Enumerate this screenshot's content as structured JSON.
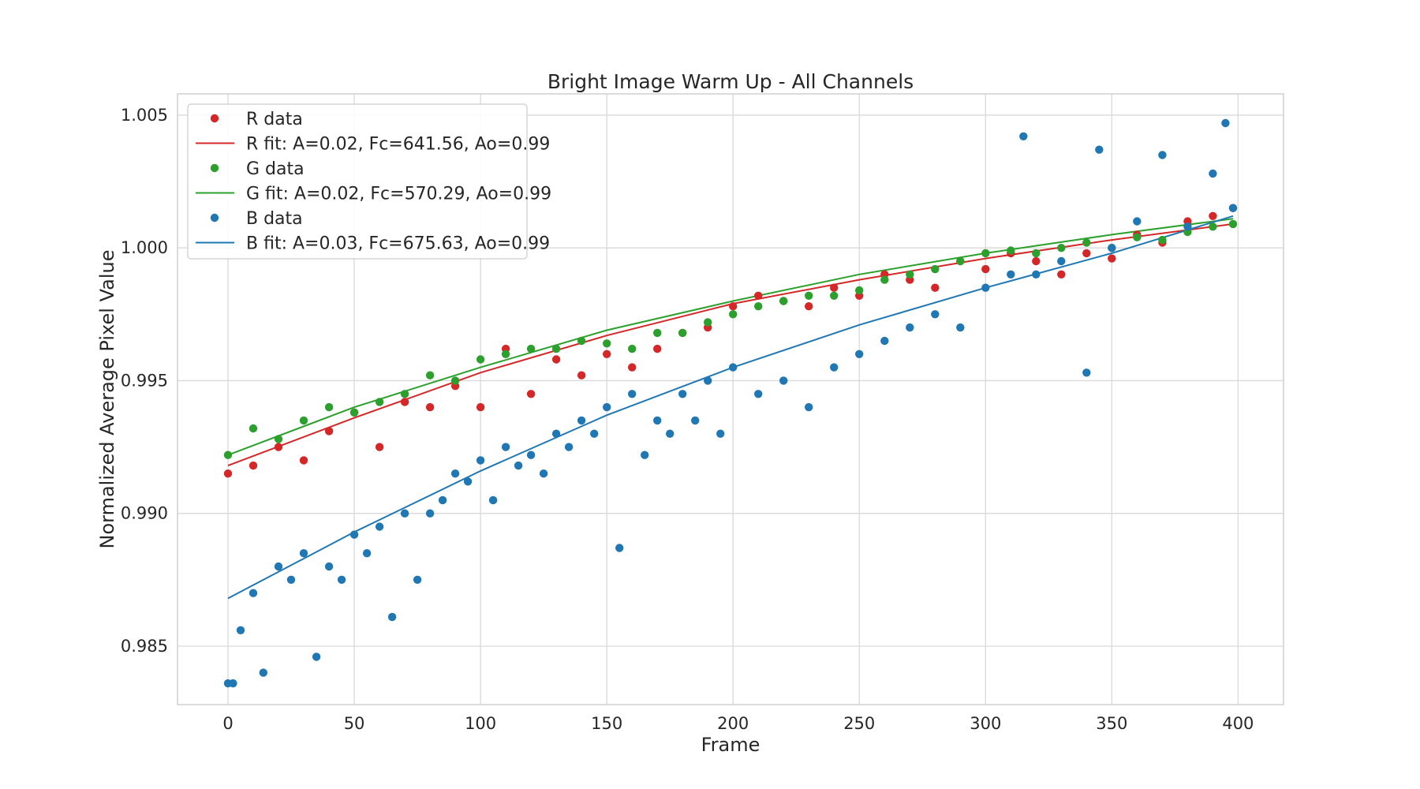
{
  "chart_data": {
    "type": "scatter",
    "title": "Bright Image Warm Up - All Channels",
    "xlabel": "Frame",
    "ylabel": "Normalized Average Pixel Value",
    "xlim": [
      -20,
      418
    ],
    "ylim": [
      0.9828,
      1.0058
    ],
    "xticks": [
      0,
      50,
      100,
      150,
      200,
      250,
      300,
      350,
      400
    ],
    "xtick_labels": [
      "0",
      "50",
      "100",
      "150",
      "200",
      "250",
      "300",
      "350",
      "400"
    ],
    "yticks": [
      0.985,
      0.99,
      0.995,
      1.0,
      1.005
    ],
    "ytick_labels": [
      "0.985",
      "0.990",
      "0.995",
      "1.000",
      "1.005"
    ],
    "grid": true,
    "legend_position": "top-left",
    "series": [
      {
        "name": "R data",
        "kind": "points",
        "color": "#d62728",
        "x": [
          0,
          10,
          20,
          30,
          40,
          50,
          60,
          70,
          80,
          90,
          100,
          110,
          120,
          130,
          140,
          150,
          160,
          170,
          180,
          190,
          200,
          210,
          220,
          230,
          240,
          250,
          260,
          270,
          280,
          290,
          300,
          310,
          320,
          330,
          340,
          350,
          360,
          370,
          380,
          390,
          398
        ],
        "y": [
          0.9915,
          0.9918,
          0.9925,
          0.992,
          0.9931,
          0.9938,
          0.9925,
          0.9942,
          0.994,
          0.9948,
          0.994,
          0.9962,
          0.9945,
          0.9958,
          0.9952,
          0.996,
          0.9955,
          0.9962,
          0.9968,
          0.997,
          0.9978,
          0.9982,
          0.998,
          0.9978,
          0.9985,
          0.9982,
          0.999,
          0.9988,
          0.9985,
          0.9995,
          0.9992,
          0.9998,
          0.9995,
          0.999,
          0.9998,
          0.9996,
          1.0005,
          1.0002,
          1.001,
          1.0012,
          1.0015
        ]
      },
      {
        "name": "R fit: A=0.02, Fc=641.56, Ao=0.99",
        "kind": "line",
        "color": "#d62728",
        "x": [
          0,
          50,
          100,
          150,
          200,
          250,
          300,
          350,
          398
        ],
        "y": [
          0.9918,
          0.9936,
          0.9953,
          0.9967,
          0.9979,
          0.9988,
          0.9996,
          1.0003,
          1.0009
        ]
      },
      {
        "name": "G data",
        "kind": "points",
        "color": "#2ca02c",
        "x": [
          0,
          10,
          20,
          30,
          40,
          50,
          60,
          70,
          80,
          90,
          100,
          110,
          120,
          130,
          140,
          150,
          160,
          170,
          180,
          190,
          200,
          210,
          220,
          230,
          240,
          250,
          260,
          270,
          280,
          290,
          300,
          310,
          320,
          330,
          340,
          350,
          360,
          370,
          380,
          390,
          398
        ],
        "y": [
          0.9922,
          0.9932,
          0.9928,
          0.9935,
          0.994,
          0.9938,
          0.9942,
          0.9945,
          0.9952,
          0.995,
          0.9958,
          0.996,
          0.9962,
          0.9962,
          0.9965,
          0.9964,
          0.9962,
          0.9968,
          0.9968,
          0.9972,
          0.9975,
          0.9978,
          0.998,
          0.9982,
          0.9982,
          0.9984,
          0.9988,
          0.999,
          0.9992,
          0.9995,
          0.9998,
          0.9999,
          0.9998,
          1.0,
          1.0002,
          1.0,
          1.0004,
          1.0003,
          1.0006,
          1.0008,
          1.0009
        ]
      },
      {
        "name": "G fit: A=0.02, Fc=570.29, Ao=0.99",
        "kind": "line",
        "color": "#2ca02c",
        "x": [
          0,
          50,
          100,
          150,
          200,
          250,
          300,
          350,
          398
        ],
        "y": [
          0.9922,
          0.994,
          0.9955,
          0.9969,
          0.998,
          0.999,
          0.9998,
          1.0005,
          1.0011
        ]
      },
      {
        "name": "B data",
        "kind": "points",
        "color": "#1f77b4",
        "x": [
          0,
          2,
          5,
          10,
          14,
          20,
          25,
          30,
          35,
          40,
          45,
          50,
          55,
          60,
          65,
          70,
          75,
          80,
          85,
          90,
          95,
          100,
          105,
          110,
          115,
          120,
          125,
          130,
          135,
          140,
          145,
          150,
          155,
          160,
          165,
          170,
          175,
          180,
          185,
          190,
          195,
          200,
          210,
          220,
          230,
          240,
          250,
          260,
          270,
          280,
          290,
          300,
          310,
          315,
          320,
          330,
          340,
          345,
          350,
          360,
          370,
          380,
          390,
          395,
          398
        ],
        "y": [
          0.9836,
          0.9836,
          0.9856,
          0.987,
          0.984,
          0.988,
          0.9875,
          0.9885,
          0.9846,
          0.988,
          0.9875,
          0.9892,
          0.9885,
          0.9895,
          0.9861,
          0.99,
          0.9875,
          0.99,
          0.9905,
          0.9915,
          0.9912,
          0.992,
          0.9905,
          0.9925,
          0.9918,
          0.9922,
          0.9915,
          0.993,
          0.9925,
          0.9935,
          0.993,
          0.994,
          0.9887,
          0.9945,
          0.9922,
          0.9935,
          0.993,
          0.9945,
          0.9935,
          0.995,
          0.993,
          0.9955,
          0.9945,
          0.995,
          0.994,
          0.9955,
          0.996,
          0.9965,
          0.997,
          0.9975,
          0.997,
          0.9985,
          0.999,
          1.0042,
          0.999,
          0.9995,
          0.9953,
          1.0037,
          1.0,
          1.001,
          1.0035,
          1.0008,
          1.0028,
          1.0047,
          1.0015
        ]
      },
      {
        "name": "B fit: A=0.03, Fc=675.63, Ao=0.99",
        "kind": "line",
        "color": "#1f77b4",
        "x": [
          0,
          50,
          100,
          150,
          200,
          250,
          300,
          350,
          398
        ],
        "y": [
          0.9868,
          0.9893,
          0.9916,
          0.9937,
          0.9955,
          0.9971,
          0.9985,
          0.9998,
          1.0012
        ]
      }
    ]
  }
}
